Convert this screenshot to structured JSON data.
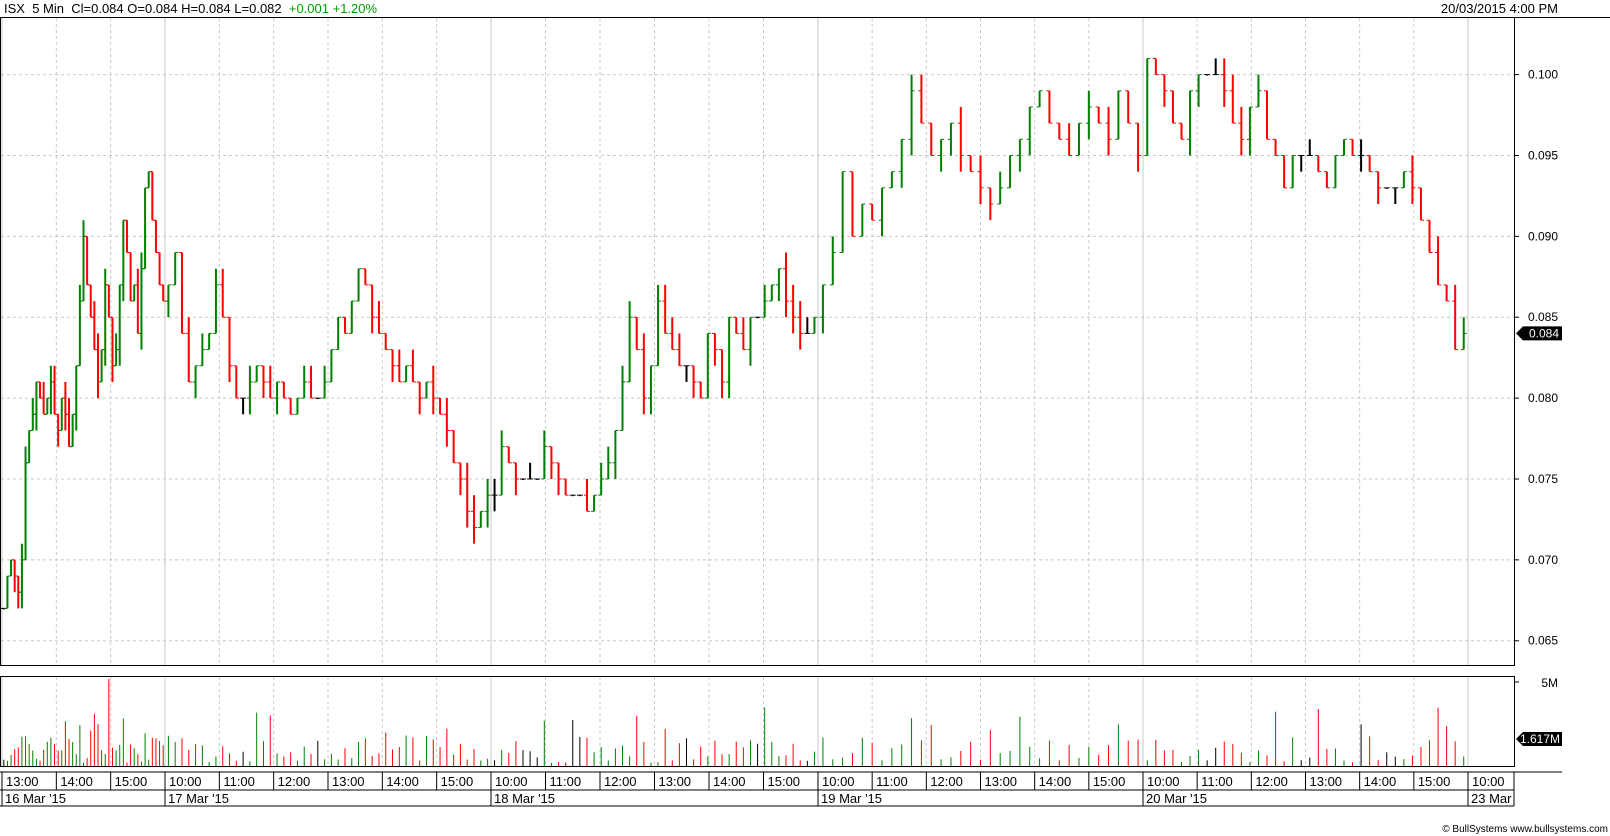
{
  "header": {
    "symbol": "ISX",
    "interval": "5 Min",
    "cl": "Cl=0.084",
    "open": "O=0.084",
    "high": "H=0.084",
    "low": "L=0.082",
    "change": "+0.001",
    "change_pct": "+1.20%"
  },
  "timestamp": "20/03/2015 4:00 PM",
  "copyright": "© BullSystems www.bullsystems.com",
  "colors": {
    "up": "#008000",
    "down": "#ff0000",
    "flat": "#000000",
    "grid": "#c8c8c8",
    "bg": "#ffffff"
  },
  "chart_data": {
    "type": "ohlc-bars-with-volume",
    "title": "ISX 5 Min",
    "price_axis": {
      "ticks": [
        "0.100",
        "0.095",
        "0.090",
        "0.085",
        "0.080",
        "0.075",
        "0.070",
        "0.065"
      ],
      "ylim": [
        0.0635,
        0.1035
      ],
      "last_price_label": "0.084"
    },
    "volume_axis": {
      "ticks": [
        "5M"
      ],
      "last_volume_label": "1.617M",
      "ylim": [
        0,
        5000000
      ]
    },
    "x_axis": {
      "time_labels": [
        "13:00",
        "14:00",
        "15:00",
        "10:00",
        "11:00",
        "12:00",
        "13:00",
        "14:00",
        "15:00",
        "10:00",
        "11:00",
        "12:00",
        "13:00",
        "14:00",
        "15:00",
        "10:00",
        "11:00",
        "12:00",
        "13:00",
        "14:00",
        "15:00",
        "10:00",
        "11:00",
        "12:00",
        "13:00",
        "14:00",
        "15:00",
        "10:00"
      ],
      "date_labels": [
        "16 Mar '15",
        "17 Mar '15",
        "18 Mar '15",
        "19 Mar '15",
        "20 Mar '15",
        "23 Mar"
      ]
    },
    "grid": true,
    "sessions": [
      {
        "date": "16 Mar '15",
        "closes": [
          0.067,
          0.069,
          0.07,
          0.069,
          0.068,
          0.07,
          0.076,
          0.078,
          0.079,
          0.081,
          0.08,
          0.079,
          0.08,
          0.081,
          0.079,
          0.078,
          0.08,
          0.079,
          0.077,
          0.079,
          0.082,
          0.086,
          0.09,
          0.087,
          0.085,
          0.083,
          0.081,
          0.083,
          0.087,
          0.085,
          0.082,
          0.083,
          0.087,
          0.091,
          0.089,
          0.086,
          0.087,
          0.084,
          0.088,
          0.093,
          0.094,
          0.091,
          0.089,
          0.087,
          0.086
        ]
      },
      {
        "date": "17 Mar '15",
        "closes": [
          0.087,
          0.089,
          0.084,
          0.081,
          0.082,
          0.083,
          0.084,
          0.087,
          0.085,
          0.082,
          0.08,
          0.08,
          0.081,
          0.082,
          0.081,
          0.08,
          0.081,
          0.08,
          0.079,
          0.08,
          0.081,
          0.08,
          0.08,
          0.081,
          0.083,
          0.085,
          0.084,
          0.086,
          0.088,
          0.087,
          0.085,
          0.084,
          0.083,
          0.082,
          0.081,
          0.082,
          0.081,
          0.08,
          0.081,
          0.08,
          0.079,
          0.078,
          0.076,
          0.075,
          0.073,
          0.072,
          0.073,
          0.074
        ]
      },
      {
        "date": "18 Mar '15",
        "closes": [
          0.074,
          0.077,
          0.076,
          0.075,
          0.075,
          0.075,
          0.075,
          0.077,
          0.076,
          0.075,
          0.074,
          0.074,
          0.074,
          0.073,
          0.074,
          0.075,
          0.076,
          0.078,
          0.081,
          0.085,
          0.083,
          0.08,
          0.082,
          0.086,
          0.084,
          0.083,
          0.082,
          0.082,
          0.081,
          0.08,
          0.084,
          0.083,
          0.081,
          0.085,
          0.084,
          0.083,
          0.085,
          0.085,
          0.086,
          0.087,
          0.088,
          0.086,
          0.085,
          0.084,
          0.084,
          0.085
        ]
      },
      {
        "date": "19 Mar '15",
        "closes": [
          0.087,
          0.089,
          0.094,
          0.09,
          0.092,
          0.091,
          0.093,
          0.094,
          0.096,
          0.099,
          0.097,
          0.095,
          0.096,
          0.097,
          0.095,
          0.094,
          0.093,
          0.092,
          0.093,
          0.095,
          0.096,
          0.098,
          0.099,
          0.097,
          0.096,
          0.095,
          0.097,
          0.098,
          0.097,
          0.096,
          0.099,
          0.097,
          0.095
        ]
      },
      {
        "date": "20 Mar '15",
        "closes": [
          0.101,
          0.1,
          0.099,
          0.097,
          0.096,
          0.099,
          0.1,
          0.1,
          0.1,
          0.099,
          0.097,
          0.096,
          0.098,
          0.099,
          0.096,
          0.095,
          0.093,
          0.095,
          0.095,
          0.095,
          0.094,
          0.093,
          0.095,
          0.096,
          0.095,
          0.095,
          0.094,
          0.093,
          0.093,
          0.093,
          0.094,
          0.093,
          0.091,
          0.089,
          0.087,
          0.086,
          0.083,
          0.084
        ]
      }
    ]
  }
}
